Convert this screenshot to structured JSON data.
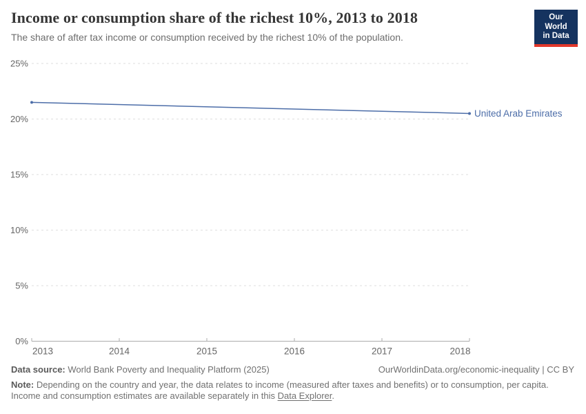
{
  "header": {
    "title": "Income or consumption share of the richest 10%, 2013 to 2018",
    "subtitle": "The share of after tax income or consumption received by the richest 10% of the population.",
    "logo": {
      "line1": "Our World",
      "line2": "in Data"
    }
  },
  "chart_data": {
    "type": "line",
    "title": "Income or consumption share of the richest 10%, 2013 to 2018",
    "x": [
      2013,
      2018
    ],
    "series": [
      {
        "name": "United Arab Emirates",
        "values": [
          21.5,
          20.5
        ],
        "color": "#4C6DA8"
      }
    ],
    "xlabel": "",
    "ylabel": "",
    "xlim": [
      2013,
      2018
    ],
    "ylim": [
      0,
      25
    ],
    "xticks": [
      2013,
      2014,
      2015,
      2016,
      2017,
      2018
    ],
    "yticks": [
      0,
      5,
      10,
      15,
      20,
      25
    ],
    "ytick_suffix": "%",
    "grid": "horizontal-dashed",
    "legend": "line-end-label"
  },
  "colors": {
    "line": "#4C6DA8",
    "grid": "#dedede",
    "axis": "#ababab",
    "tick_label": "#666666",
    "logo_bg": "#15335F",
    "logo_accent": "#E2382B"
  },
  "footer": {
    "source_label": "Data source:",
    "source_text": " World Bank Poverty and Inequality Platform (2025)",
    "rights": "OurWorldinData.org/economic-inequality | CC BY",
    "note_label": "Note:",
    "note_line1": " Depending on the country and year, the data relates to income (measured after taxes and benefits) or to consumption, per capita.",
    "note_line2_pre": "Income and consumption estimates are available separately in this ",
    "note_link": "Data Explorer",
    "note_line2_post": "."
  }
}
